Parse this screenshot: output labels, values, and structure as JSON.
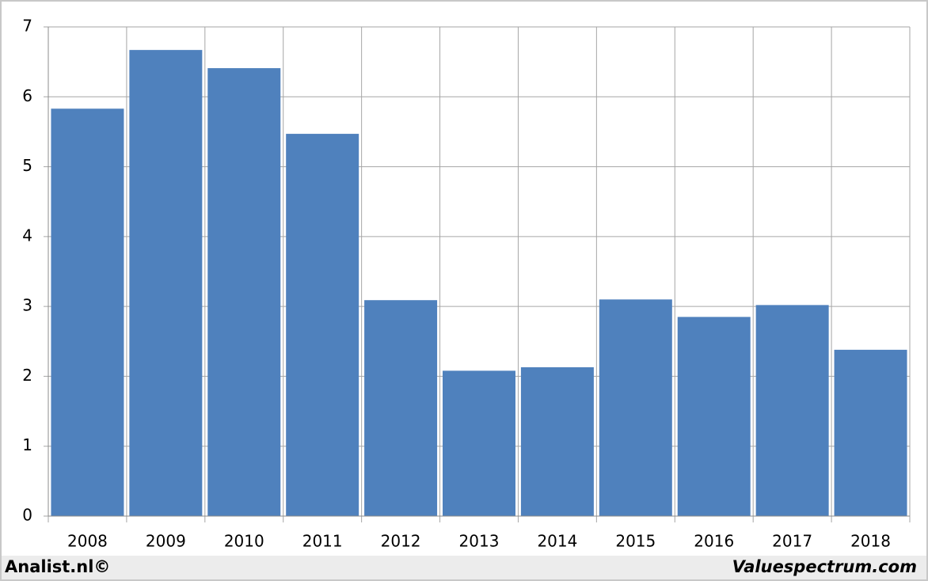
{
  "chart_data": {
    "type": "bar",
    "categories": [
      "2008",
      "2009",
      "2010",
      "2011",
      "2012",
      "2013",
      "2014",
      "2015",
      "2016",
      "2017",
      "2018"
    ],
    "values": [
      5.83,
      6.67,
      6.41,
      5.47,
      3.09,
      2.08,
      2.13,
      3.1,
      2.85,
      3.02,
      2.38
    ],
    "color": "#4f81bd",
    "ylim": [
      0,
      7
    ],
    "yticks": [
      0,
      1,
      2,
      3,
      4,
      5,
      6,
      7
    ],
    "grid": true,
    "annotations": [
      "Analist.nl©",
      "Valuespectrum.com"
    ]
  }
}
